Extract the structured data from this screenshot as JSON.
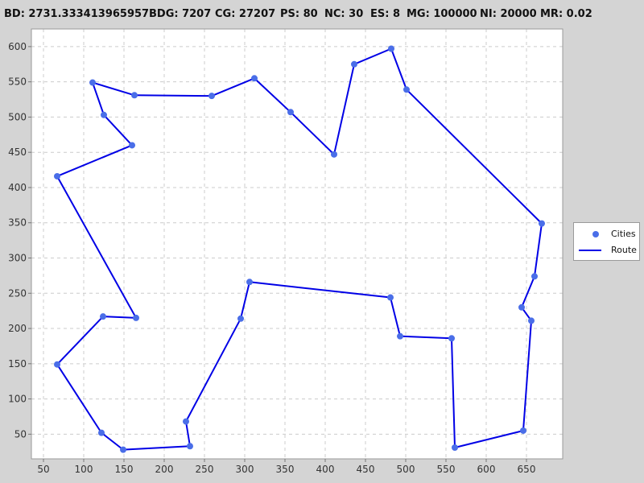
{
  "header": {
    "stats": [
      {
        "key": "BD",
        "text": "BD: 2731.333413965957"
      },
      {
        "key": "BDG",
        "text": "BDG: 7207"
      },
      {
        "key": "CG",
        "text": "CG: 27207"
      },
      {
        "key": "PS",
        "text": "PS: 80"
      },
      {
        "key": "NC",
        "text": "NC: 30"
      },
      {
        "key": "ES",
        "text": "ES: 8"
      },
      {
        "key": "MG",
        "text": "MG: 100000"
      },
      {
        "key": "NI",
        "text": "NI: 20000"
      },
      {
        "key": "MR",
        "text": "MR: 0.02"
      }
    ]
  },
  "legend": {
    "cities_label": "Cities",
    "route_label": "Route"
  },
  "colors": {
    "city_fill": "#4a6ee8",
    "route_line": "#0000e6",
    "plot_background": "#ffffff",
    "grid": "#cccccc",
    "page_background": "#d4d4d4"
  },
  "chart_data": {
    "type": "scatter",
    "title": "",
    "xlabel": "",
    "ylabel": "",
    "xlim": [
      35,
      695
    ],
    "ylim": [
      15,
      625
    ],
    "xticks": [
      50,
      100,
      150,
      200,
      250,
      300,
      350,
      400,
      450,
      500,
      550,
      600,
      650
    ],
    "yticks": [
      50,
      100,
      150,
      200,
      250,
      300,
      350,
      400,
      450,
      500,
      550,
      600
    ],
    "grid": true,
    "legend_position": "right",
    "series": [
      {
        "name": "Cities",
        "kind": "points",
        "points": [
          [
            111,
            549
          ],
          [
            163,
            531
          ],
          [
            259,
            530
          ],
          [
            312,
            555
          ],
          [
            357,
            507
          ],
          [
            411,
            447
          ],
          [
            436,
            575
          ],
          [
            482,
            597
          ],
          [
            501,
            539
          ],
          [
            669,
            349
          ],
          [
            660,
            274
          ],
          [
            644,
            230
          ],
          [
            656,
            211
          ],
          [
            646,
            55
          ],
          [
            561,
            31
          ],
          [
            557,
            186
          ],
          [
            493,
            189
          ],
          [
            481,
            244
          ],
          [
            306,
            266
          ],
          [
            295,
            214
          ],
          [
            227,
            68
          ],
          [
            232,
            33
          ],
          [
            149,
            28
          ],
          [
            122,
            52
          ],
          [
            67,
            149
          ],
          [
            124,
            217
          ],
          [
            165,
            215
          ],
          [
            67,
            416
          ],
          [
            160,
            460
          ],
          [
            125,
            503
          ]
        ]
      },
      {
        "name": "Route",
        "kind": "line",
        "closed": true,
        "order": [
          0,
          1,
          2,
          3,
          4,
          5,
          6,
          7,
          8,
          9,
          10,
          11,
          12,
          13,
          14,
          15,
          16,
          17,
          18,
          19,
          20,
          21,
          22,
          23,
          24,
          25,
          26,
          27,
          28,
          29
        ]
      }
    ]
  }
}
